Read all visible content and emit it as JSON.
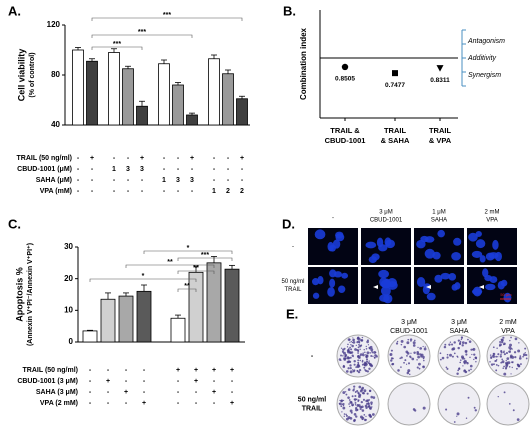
{
  "chart_data": [
    {
      "type": "bar",
      "panel_label": "A.",
      "ylabel_lines": [
        "Cell viability",
        "(% of control)"
      ],
      "values": [
        100,
        91,
        98,
        85,
        55,
        89,
        72,
        48,
        93,
        81,
        61
      ],
      "errors": [
        2,
        2,
        3,
        2,
        4,
        3,
        2,
        1.5,
        3,
        3,
        2
      ],
      "colors": [
        "#ffffff",
        "#404040",
        "#ffffff",
        "#9a9a9a",
        "#404040",
        "#ffffff",
        "#9a9a9a",
        "#404040",
        "#ffffff",
        "#9a9a9a",
        "#404040"
      ],
      "ylim": [
        40,
        120
      ],
      "yticks": [
        40,
        80,
        120
      ],
      "significance": [
        "***",
        "***",
        "***"
      ],
      "treatments": [
        {
          "label": "TRAIL (50 ng/ml)",
          "cells": [
            "-",
            "+",
            "-",
            "-",
            "+",
            "-",
            "-",
            "+",
            "-",
            "-",
            "+"
          ]
        },
        {
          "label": "CBUD-1001 (μM)",
          "cells": [
            "-",
            "-",
            "1",
            "3",
            "3",
            "-",
            "-",
            "-",
            "-",
            "-",
            "-"
          ]
        },
        {
          "label": "SAHA (μM)",
          "cells": [
            "-",
            "-",
            "-",
            "-",
            "-",
            "1",
            "3",
            "3",
            "-",
            "-",
            "-"
          ]
        },
        {
          "label": "VPA (mM)",
          "cells": [
            "-",
            "-",
            "-",
            "-",
            "-",
            "-",
            "-",
            "-",
            "1",
            "2",
            "2"
          ]
        }
      ]
    },
    {
      "type": "scatter",
      "panel_label": "B.",
      "ylabel": "Combination index",
      "categories": [
        [
          "TRAIL &",
          "CBUD-1001"
        ],
        [
          "TRAIL",
          "& SAHA"
        ],
        [
          "TRAIL",
          "& VPA"
        ]
      ],
      "values": [
        0.8505,
        0.7477,
        0.8311
      ],
      "markers": [
        "circle",
        "square",
        "triangle-down"
      ],
      "color": "#000000",
      "ylim": [
        0,
        1.8
      ],
      "reference_line": 1,
      "zones": [
        "Antagonism",
        "Additivity",
        "Synergism"
      ],
      "zone_color": "#4a8fc0"
    },
    {
      "type": "bar",
      "panel_label": "C.",
      "ylabel_lines": [
        "Apoptosis %",
        "(Annexin V⁺PI⁻/Annexin V⁺PI⁺)"
      ],
      "values": [
        3.5,
        13.5,
        14.5,
        16,
        7.5,
        22,
        25,
        23
      ],
      "errors": [
        0.2,
        2,
        1,
        2,
        1,
        2,
        2,
        1.2
      ],
      "colors": [
        "#ffffff",
        "#d0d0d0",
        "#a8a8a8",
        "#5a5a5a",
        "#ffffff",
        "#d0d0d0",
        "#a8a8a8",
        "#5a5a5a"
      ],
      "ylim": [
        0,
        30
      ],
      "yticks": [
        0,
        10,
        20,
        30
      ],
      "significance": [
        "*",
        "***",
        "**",
        "**",
        "*",
        "**"
      ],
      "treatments": [
        {
          "label": "TRAIL (50 ng/ml)",
          "cells": [
            "-",
            "-",
            "-",
            "-",
            "+",
            "+",
            "+",
            "+"
          ]
        },
        {
          "label": "CBUD-1001 (3 μM)",
          "cells": [
            "-",
            "+",
            "-",
            "-",
            "-",
            "+",
            "-",
            "-"
          ]
        },
        {
          "label": "SAHA (3 μM)",
          "cells": [
            "-",
            "-",
            "+",
            "-",
            "-",
            "-",
            "+",
            "-"
          ]
        },
        {
          "label": "VPA (2 mM)",
          "cells": [
            "-",
            "-",
            "-",
            "+",
            "-",
            "-",
            "-",
            "+"
          ]
        }
      ]
    }
  ],
  "panel_d": {
    "panel_label": "D.",
    "columns": [
      [
        "-"
      ],
      [
        "3 μM",
        "CBUD-1001"
      ],
      [
        "1 μM",
        "SAHA"
      ],
      [
        "2 mM",
        "VPA"
      ]
    ],
    "rows": [
      [
        "-"
      ],
      [
        "50 ng/ml",
        "TRAIL"
      ]
    ],
    "scale_bar": "50 μm"
  },
  "panel_e": {
    "panel_label": "E.",
    "columns": [
      [
        "3 μM",
        "CBUD-1001"
      ],
      [
        "3 μM",
        "SAHA"
      ],
      [
        "2 mM",
        "VPA"
      ]
    ],
    "rows": [
      [
        "-"
      ],
      [
        "50 ng/ml",
        "TRAIL"
      ]
    ]
  }
}
